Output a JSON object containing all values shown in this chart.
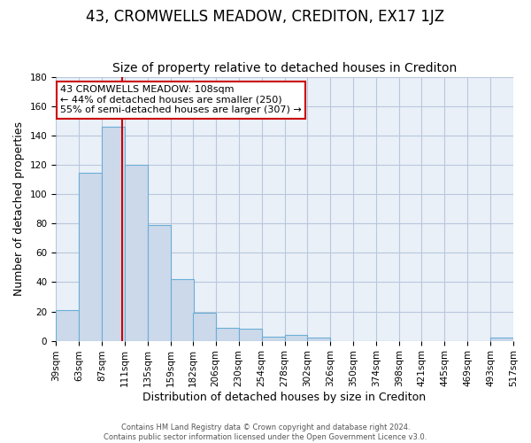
{
  "title": "43, CROMWELLS MEADOW, CREDITON, EX17 1JZ",
  "subtitle": "Size of property relative to detached houses in Crediton",
  "xlabel": "Distribution of detached houses by size in Crediton",
  "ylabel": "Number of detached properties",
  "bar_left_edges": [
    39,
    63,
    87,
    111,
    135,
    159,
    182,
    206,
    230,
    254,
    278,
    302,
    326,
    350,
    374,
    398,
    421,
    445,
    469,
    493
  ],
  "bar_widths": [
    24,
    24,
    24,
    24,
    24,
    24,
    24,
    24,
    24,
    24,
    24,
    24,
    24,
    24,
    24,
    24,
    24,
    24,
    24,
    24
  ],
  "bar_heights": [
    21,
    115,
    146,
    120,
    79,
    42,
    19,
    9,
    8,
    3,
    4,
    2,
    0,
    0,
    0,
    0,
    0,
    0,
    0,
    2
  ],
  "bar_color": "#ccd9eb",
  "bar_edge_color": "#6baed6",
  "tick_labels": [
    "39sqm",
    "63sqm",
    "87sqm",
    "111sqm",
    "135sqm",
    "159sqm",
    "182sqm",
    "206sqm",
    "230sqm",
    "254sqm",
    "278sqm",
    "302sqm",
    "326sqm",
    "350sqm",
    "374sqm",
    "398sqm",
    "421sqm",
    "445sqm",
    "469sqm",
    "493sqm",
    "517sqm"
  ],
  "ylim": [
    0,
    180
  ],
  "yticks": [
    0,
    20,
    40,
    60,
    80,
    100,
    120,
    140,
    160,
    180
  ],
  "property_line_x": 108,
  "property_line_color": "#cc0000",
  "annotation_title": "43 CROMWELLS MEADOW: 108sqm",
  "annotation_line1": "← 44% of detached houses are smaller (250)",
  "annotation_line2": "55% of semi-detached houses are larger (307) →",
  "footer1": "Contains HM Land Registry data © Crown copyright and database right 2024.",
  "footer2": "Contains public sector information licensed under the Open Government Licence v3.0.",
  "background_color": "#ffffff",
  "plot_bg_color": "#eaf0f8",
  "grid_color": "#b8c8dc",
  "title_fontsize": 12,
  "subtitle_fontsize": 10,
  "axis_label_fontsize": 9,
  "tick_fontsize": 7.5
}
